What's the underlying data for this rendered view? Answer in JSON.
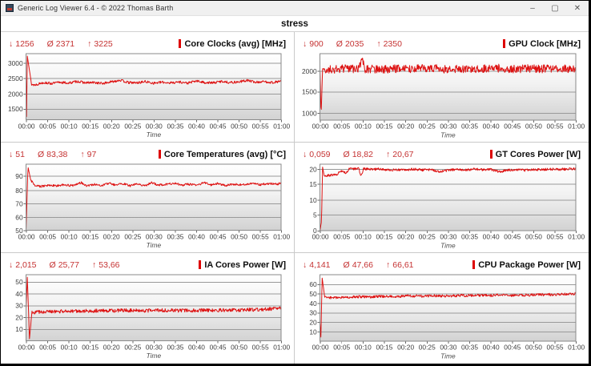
{
  "window": {
    "title": "Generic Log Viewer 6.4 - © 2022 Thomas Barth",
    "minimize": "–",
    "maximize": "▢",
    "close": "✕"
  },
  "tab_label": "stress",
  "stat_symbols": {
    "min": "↓",
    "avg": "Ø",
    "max": "↑"
  },
  "colors": {
    "line": "#dd1111",
    "stats_text": "#c53232",
    "legend_bar": "#dd0000",
    "grid_line": "#9a9a9a",
    "plot_frame": "#8a8a8a"
  },
  "chart_data": [
    {
      "type": "line",
      "title": "Core Clocks (avg) [MHz]",
      "stats": {
        "min": "1256",
        "avg": "2371",
        "max": "3225"
      },
      "xlabel": "Time",
      "x_ticks": [
        "00:00",
        "00:05",
        "00:10",
        "00:15",
        "00:20",
        "00:25",
        "00:30",
        "00:35",
        "00:40",
        "00:45",
        "00:50",
        "00:55",
        "01:00"
      ],
      "x_range": [
        0,
        60
      ],
      "ylim": [
        1150,
        3300
      ],
      "yticks": [
        1500,
        2000,
        2500,
        3000
      ],
      "keypoints": [
        [
          0,
          2400
        ],
        [
          0.1,
          1256
        ],
        [
          0.3,
          3225
        ],
        [
          0.8,
          2750
        ],
        [
          1.3,
          2300
        ],
        [
          2,
          2280
        ],
        [
          4,
          2360
        ],
        [
          6,
          2330
        ],
        [
          8,
          2370
        ],
        [
          10,
          2340
        ],
        [
          12,
          2400
        ],
        [
          14,
          2350
        ],
        [
          16,
          2360
        ],
        [
          18,
          2330
        ],
        [
          20,
          2380
        ],
        [
          22,
          2440
        ],
        [
          24,
          2360
        ],
        [
          26,
          2350
        ],
        [
          28,
          2390
        ],
        [
          30,
          2340
        ],
        [
          32,
          2370
        ],
        [
          34,
          2350
        ],
        [
          36,
          2380
        ],
        [
          38,
          2340
        ],
        [
          40,
          2410
        ],
        [
          42,
          2360
        ],
        [
          44,
          2350
        ],
        [
          46,
          2400
        ],
        [
          48,
          2360
        ],
        [
          50,
          2380
        ],
        [
          52,
          2430
        ],
        [
          54,
          2370
        ],
        [
          56,
          2390
        ],
        [
          58,
          2360
        ],
        [
          60,
          2410
        ]
      ],
      "noise": 40
    },
    {
      "type": "line",
      "title": "GPU Clock [MHz]",
      "stats": {
        "min": "900",
        "avg": "2035",
        "max": "2350"
      },
      "xlabel": "Time",
      "x_ticks": [
        "00:00",
        "00:05",
        "00:10",
        "00:15",
        "00:20",
        "00:25",
        "00:30",
        "00:35",
        "00:40",
        "00:45",
        "00:50",
        "00:55",
        "01:00"
      ],
      "x_range": [
        0,
        60
      ],
      "ylim": [
        820,
        2420
      ],
      "yticks": [
        1000,
        1500,
        2000
      ],
      "keypoints": [
        [
          0,
          2000
        ],
        [
          0.25,
          900
        ],
        [
          0.6,
          2050
        ],
        [
          3,
          2030
        ],
        [
          6,
          2060
        ],
        [
          9,
          2040
        ],
        [
          10,
          2260
        ],
        [
          10.4,
          2050
        ],
        [
          14,
          2040
        ],
        [
          18,
          2060
        ],
        [
          22,
          2050
        ],
        [
          26,
          2070
        ],
        [
          30,
          2040
        ],
        [
          34,
          2060
        ],
        [
          38,
          2050
        ],
        [
          42,
          2070
        ],
        [
          46,
          2050
        ],
        [
          50,
          2060
        ],
        [
          54,
          2050
        ],
        [
          58,
          2060
        ],
        [
          60,
          2070
        ]
      ],
      "noise": 100
    },
    {
      "type": "line",
      "title": "Core Temperatures (avg) [°C]",
      "stats": {
        "min": "51",
        "avg": "83,38",
        "max": "97"
      },
      "xlabel": "Time",
      "x_ticks": [
        "00:00",
        "00:05",
        "00:10",
        "00:15",
        "00:20",
        "00:25",
        "00:30",
        "00:35",
        "00:40",
        "00:45",
        "00:50",
        "00:55",
        "01:00"
      ],
      "x_range": [
        0,
        60
      ],
      "ylim": [
        50,
        99
      ],
      "yticks": [
        50,
        60,
        70,
        80,
        90
      ],
      "keypoints": [
        [
          0,
          51
        ],
        [
          0.45,
          97
        ],
        [
          1.1,
          87
        ],
        [
          2,
          83.5
        ],
        [
          3.5,
          82.5
        ],
        [
          5,
          83.2
        ],
        [
          7,
          83
        ],
        [
          9,
          83.6
        ],
        [
          11,
          83
        ],
        [
          13,
          85.3
        ],
        [
          14.2,
          83
        ],
        [
          16,
          84
        ],
        [
          18,
          83.2
        ],
        [
          19.5,
          85
        ],
        [
          21,
          83.4
        ],
        [
          23,
          84.6
        ],
        [
          24.5,
          83
        ],
        [
          26,
          84.2
        ],
        [
          28,
          83.2
        ],
        [
          29.5,
          85.2
        ],
        [
          31,
          83.5
        ],
        [
          33,
          84
        ],
        [
          35,
          85
        ],
        [
          36.5,
          83.2
        ],
        [
          38,
          84.2
        ],
        [
          40,
          83.3
        ],
        [
          42,
          85.4
        ],
        [
          43.5,
          83.4
        ],
        [
          45,
          84.6
        ],
        [
          47,
          83.2
        ],
        [
          49,
          84.2
        ],
        [
          51,
          83.6
        ],
        [
          53,
          85
        ],
        [
          55,
          83.8
        ],
        [
          57,
          84.6
        ],
        [
          59,
          84.2
        ],
        [
          60,
          85
        ]
      ],
      "noise": 0.8
    },
    {
      "type": "line",
      "title": "GT Cores Power [W]",
      "stats": {
        "min": "0,059",
        "avg": "18,82",
        "max": "20,67"
      },
      "xlabel": "Time",
      "x_ticks": [
        "00:00",
        "00:05",
        "00:10",
        "00:15",
        "00:20",
        "00:25",
        "00:30",
        "00:35",
        "00:40",
        "00:45",
        "00:50",
        "00:55",
        "01:00"
      ],
      "x_range": [
        0,
        60
      ],
      "ylim": [
        0,
        21.5
      ],
      "yticks": [
        0,
        5,
        10,
        15,
        20
      ],
      "keypoints": [
        [
          0,
          0.06
        ],
        [
          0.35,
          3
        ],
        [
          0.6,
          20.5
        ],
        [
          1,
          17.6
        ],
        [
          2.5,
          17.9
        ],
        [
          4,
          18.3
        ],
        [
          5,
          19.4
        ],
        [
          6,
          18.6
        ],
        [
          7,
          20.1
        ],
        [
          8,
          19.9
        ],
        [
          9,
          20.4
        ],
        [
          9.6,
          17.6
        ],
        [
          10.2,
          20
        ],
        [
          12,
          19.8
        ],
        [
          14,
          19.9
        ],
        [
          16,
          19.6
        ],
        [
          18,
          19.8
        ],
        [
          20,
          19.6
        ],
        [
          22,
          19.9
        ],
        [
          24,
          19.6
        ],
        [
          26,
          19.8
        ],
        [
          28,
          18.9
        ],
        [
          30,
          19.5
        ],
        [
          32,
          19.8
        ],
        [
          34,
          19.6
        ],
        [
          36,
          19.9
        ],
        [
          38,
          19.7
        ],
        [
          40,
          19.8
        ],
        [
          42,
          19
        ],
        [
          44,
          19.6
        ],
        [
          46,
          19.8
        ],
        [
          48,
          19.5
        ],
        [
          50,
          19.8
        ],
        [
          52,
          19.7
        ],
        [
          54,
          19.9
        ],
        [
          56,
          19.8
        ],
        [
          58,
          19.9
        ],
        [
          60,
          20
        ]
      ],
      "noise": 0.4
    },
    {
      "type": "line",
      "title": "IA Cores Power [W]",
      "stats": {
        "min": "2,015",
        "avg": "25,77",
        "max": "53,66"
      },
      "xlabel": "Time",
      "x_ticks": [
        "00:00",
        "00:05",
        "00:10",
        "00:15",
        "00:20",
        "00:25",
        "00:30",
        "00:35",
        "00:40",
        "00:45",
        "00:50",
        "00:55",
        "01:00"
      ],
      "x_range": [
        0,
        60
      ],
      "ylim": [
        0,
        56
      ],
      "yticks": [
        10,
        20,
        30,
        40,
        50
      ],
      "keypoints": [
        [
          0,
          28
        ],
        [
          0.3,
          53.7
        ],
        [
          0.8,
          2
        ],
        [
          1.4,
          24
        ],
        [
          4,
          24.6
        ],
        [
          8,
          25
        ],
        [
          12,
          25.2
        ],
        [
          16,
          25.4
        ],
        [
          20,
          25.4
        ],
        [
          24,
          25.8
        ],
        [
          28,
          25.5
        ],
        [
          32,
          25.9
        ],
        [
          36,
          25.6
        ],
        [
          40,
          25.8
        ],
        [
          44,
          26
        ],
        [
          48,
          26
        ],
        [
          52,
          26.2
        ],
        [
          56,
          26.6
        ],
        [
          60,
          27.4
        ]
      ],
      "noise": 1.5
    },
    {
      "type": "line",
      "title": "CPU Package Power [W]",
      "stats": {
        "min": "4,141",
        "avg": "47,66",
        "max": "66,61"
      },
      "xlabel": "Time",
      "x_ticks": [
        "00:00",
        "00:05",
        "00:10",
        "00:15",
        "00:20",
        "00:25",
        "00:30",
        "00:35",
        "00:40",
        "00:45",
        "00:50",
        "00:55",
        "01:00"
      ],
      "x_range": [
        0,
        60
      ],
      "ylim": [
        0,
        70
      ],
      "yticks": [
        10,
        20,
        30,
        40,
        50,
        60
      ],
      "keypoints": [
        [
          0,
          18
        ],
        [
          0.2,
          4.1
        ],
        [
          0.5,
          66.6
        ],
        [
          1.1,
          46
        ],
        [
          3,
          45.6
        ],
        [
          6,
          46.2
        ],
        [
          9,
          46.8
        ],
        [
          12,
          46.6
        ],
        [
          15,
          47.2
        ],
        [
          18,
          47
        ],
        [
          21,
          47.6
        ],
        [
          24,
          47.3
        ],
        [
          27,
          47.8
        ],
        [
          30,
          47.5
        ],
        [
          33,
          48
        ],
        [
          36,
          48.2
        ],
        [
          39,
          48
        ],
        [
          42,
          48.4
        ],
        [
          45,
          48.2
        ],
        [
          48,
          48.6
        ],
        [
          51,
          48.8
        ],
        [
          54,
          49
        ],
        [
          57,
          49.3
        ],
        [
          60,
          49.8
        ]
      ],
      "noise": 1.4
    }
  ]
}
